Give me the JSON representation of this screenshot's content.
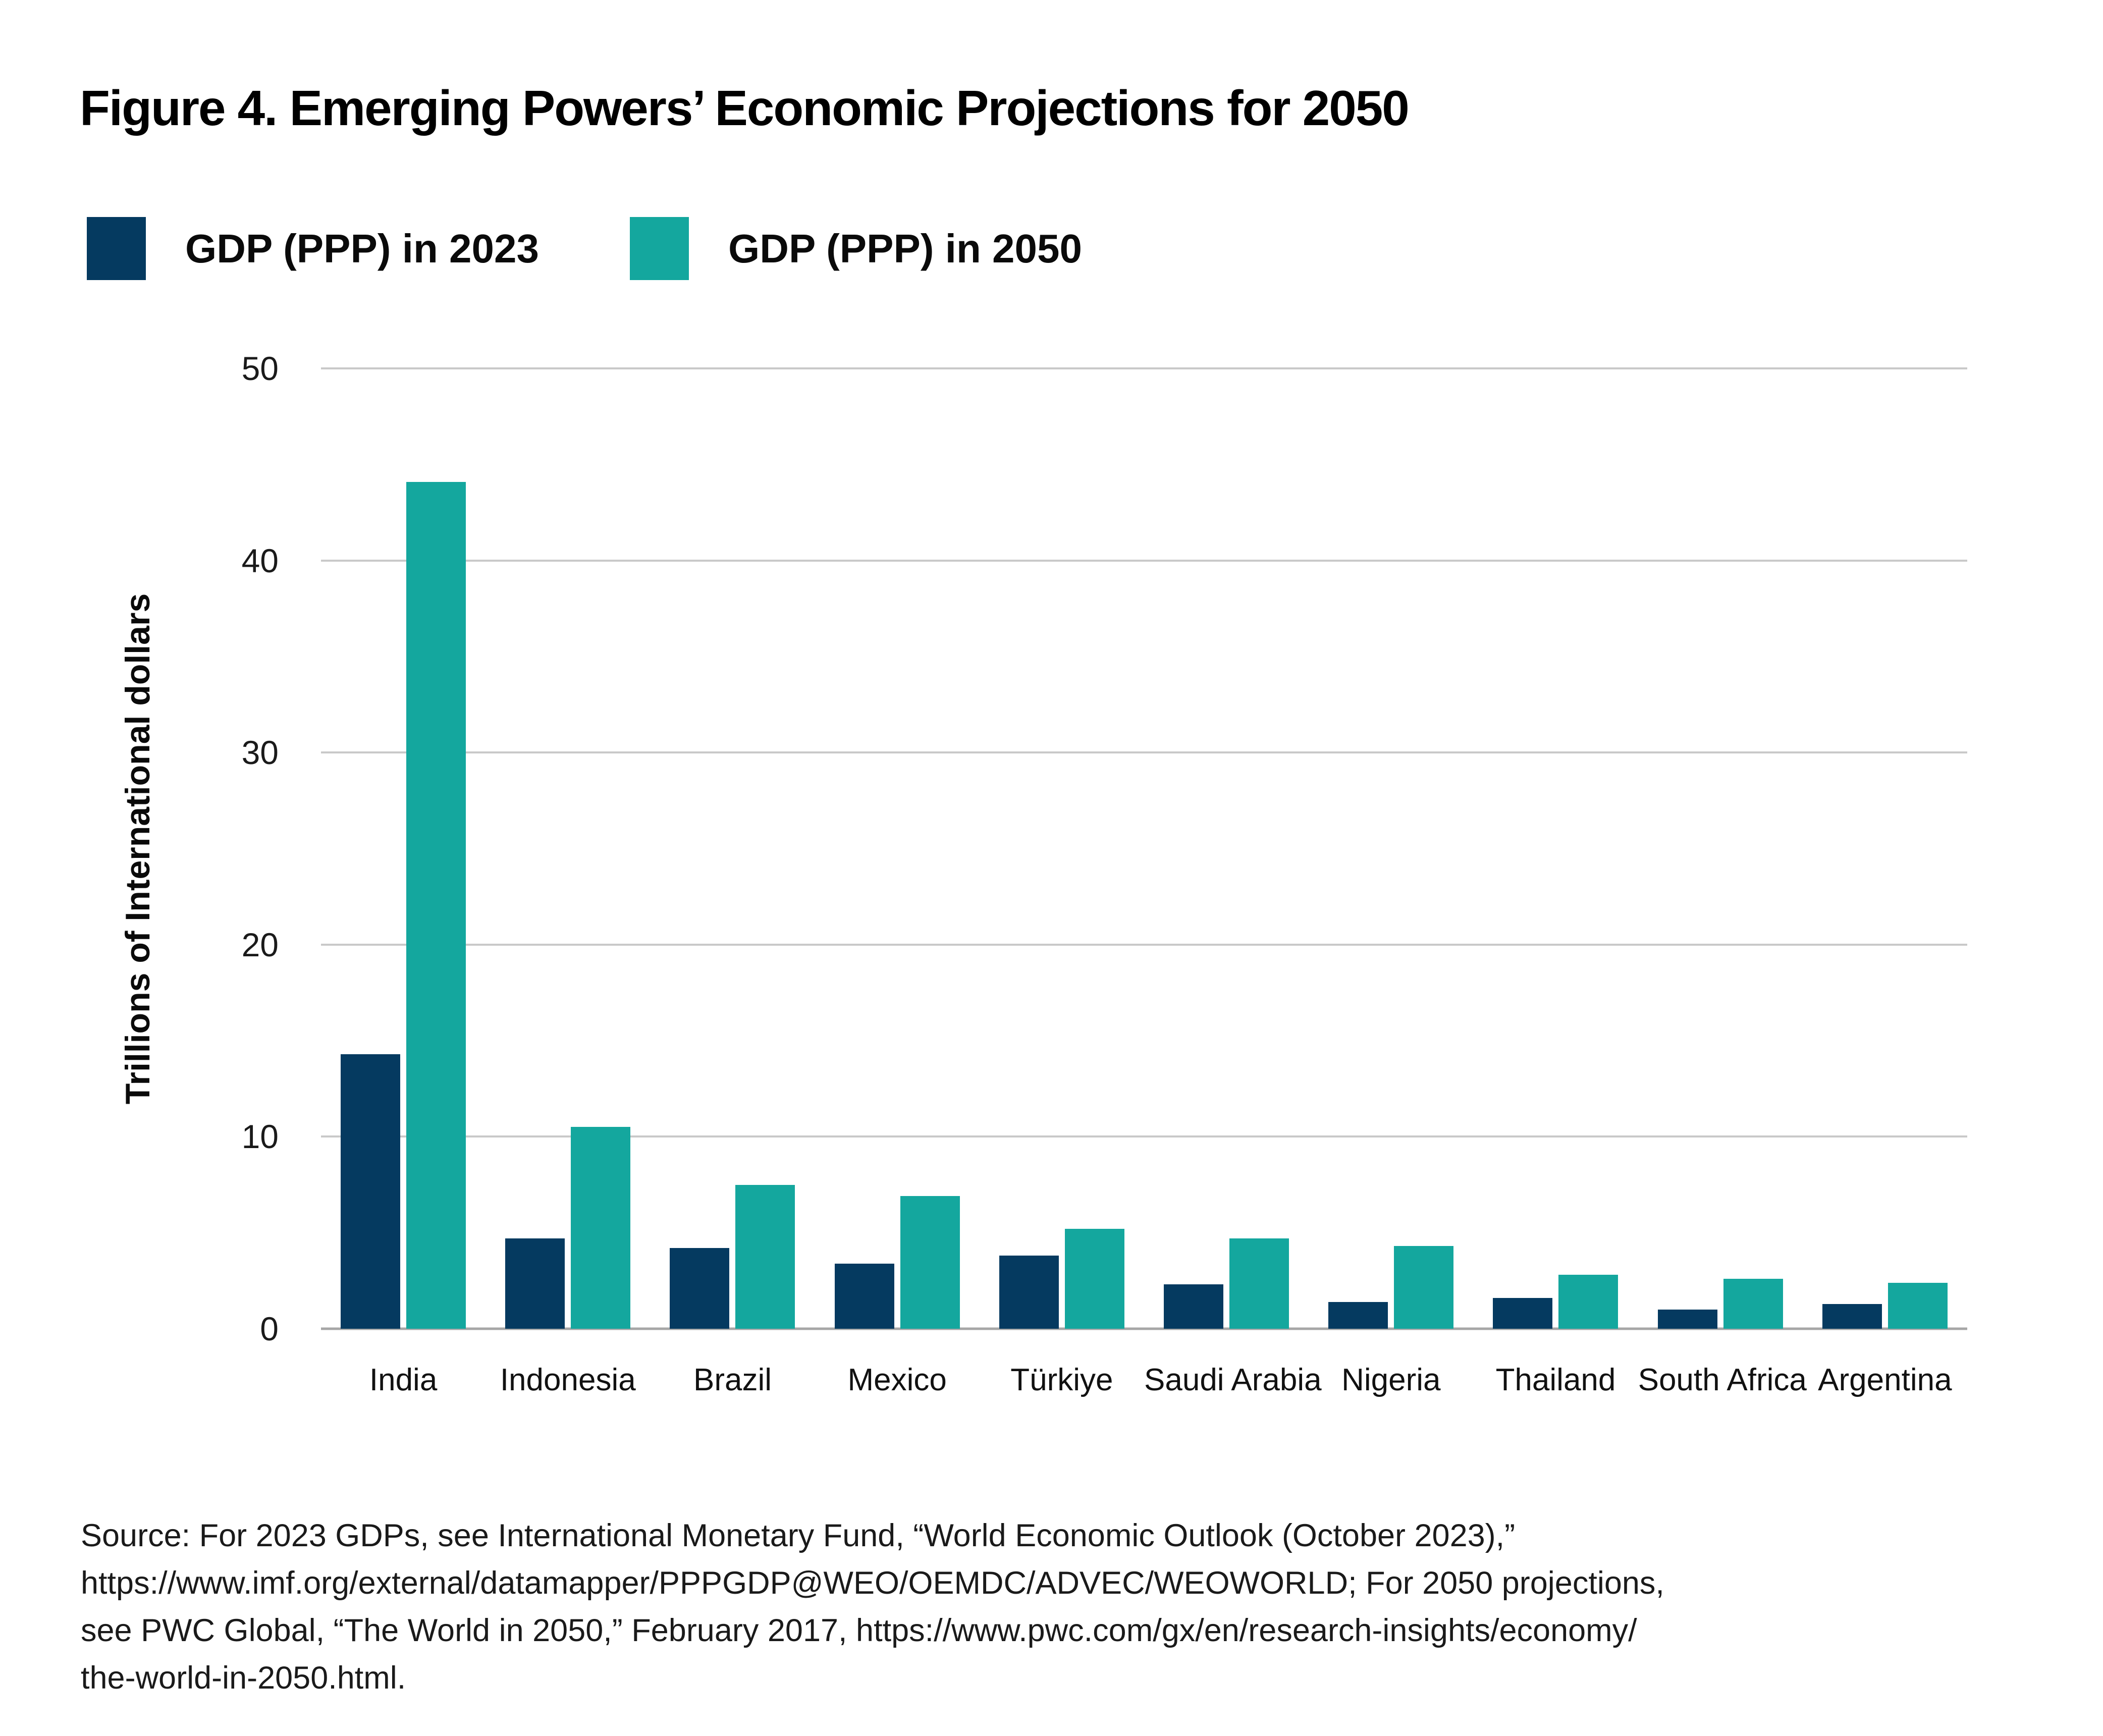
{
  "figure": {
    "title": "Figure 4. Emerging Powers’ Economic Projections for 2050",
    "source_lines": [
      "Source: For 2023 GDPs, see International Monetary Fund, “World Economic Outlook (October 2023),”",
      "https://www.imf.org/external/datamapper/PPPGDP@WEO/OEMDC/ADVEC/WEOWORLD; For 2050 projections,",
      "see PWC Global, “The World in 2050,” February 2017, https://www.pwc.com/gx/en/research-insights/economy/",
      "the-world-in-2050.html."
    ]
  },
  "colors": {
    "gdp2023": "#053A60",
    "gdp2050": "#14A79E",
    "gridline": "#C9C9C9",
    "baseline": "#A6A6A6"
  },
  "chart_data": {
    "type": "bar",
    "title": "Figure 4. Emerging Powers’ Economic Projections for 2050",
    "categories": [
      "India",
      "Indonesia",
      "Brazil",
      "Mexico",
      "Türkiye",
      "Saudi Arabia",
      "Nigeria",
      "Thailand",
      "South Africa",
      "Argentina"
    ],
    "series": [
      {
        "name": "GDP (PPP) in 2023",
        "color_key": "gdp2023",
        "values": [
          14.3,
          4.7,
          4.2,
          3.4,
          3.8,
          2.3,
          1.4,
          1.6,
          1.0,
          1.3
        ]
      },
      {
        "name": "GDP (PPP) in 2050",
        "color_key": "gdp2050",
        "values": [
          44.1,
          10.5,
          7.5,
          6.9,
          5.2,
          4.7,
          4.3,
          2.8,
          2.6,
          2.4
        ]
      }
    ],
    "xlabel": "",
    "ylabel": "Trillions of International dollars",
    "ylim": [
      0,
      50
    ],
    "yticks": [
      0,
      10,
      20,
      30,
      40,
      50
    ],
    "grid": "horizontal",
    "legend_position": "top-left"
  }
}
